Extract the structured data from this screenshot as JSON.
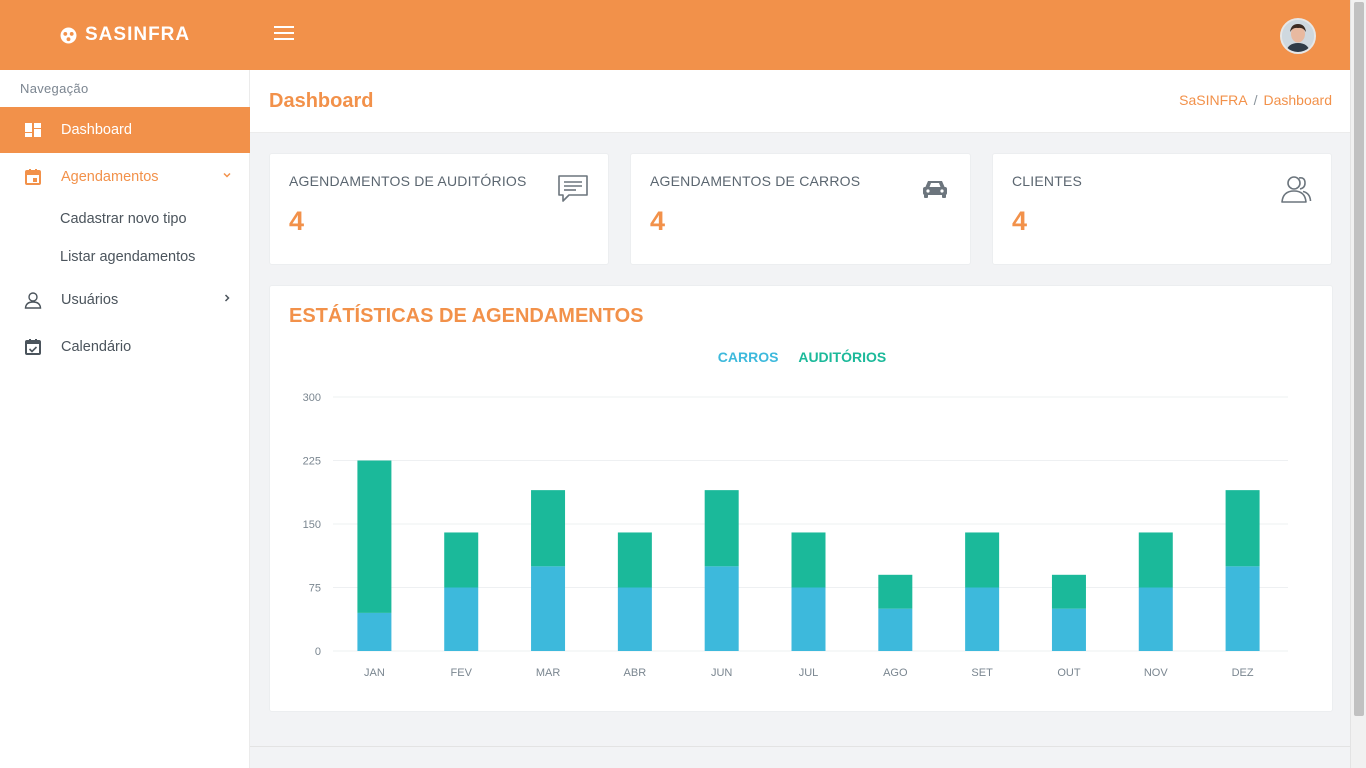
{
  "app": {
    "brand": "SASINFRA"
  },
  "sidebar": {
    "caption": "Navegação",
    "items": [
      {
        "label": "Dashboard",
        "icon": "dashboard-icon"
      },
      {
        "label": "Agendamentos",
        "icon": "calendar-icon"
      },
      {
        "label": "Usuários",
        "icon": "user-icon"
      },
      {
        "label": "Calendário",
        "icon": "calendar-check-icon"
      }
    ],
    "subitems": [
      {
        "label": "Cadastrar novo tipo"
      },
      {
        "label": "Listar agendamentos"
      }
    ]
  },
  "header": {
    "title": "Dashboard",
    "breadcrumb": [
      "SaSINFRA",
      "Dashboard"
    ]
  },
  "cards": [
    {
      "title": "AGENDAMENTOS DE AUDITÓRIOS",
      "value": "4",
      "icon": "comment-icon"
    },
    {
      "title": "AGENDAMENTOS DE CARROS",
      "value": "4",
      "icon": "car-icon"
    },
    {
      "title": "CLIENTES",
      "value": "4",
      "icon": "users-icon"
    }
  ],
  "panel": {
    "title": "ESTÁTÍSTICAS DE AGENDAMENTOS"
  },
  "colors": {
    "accent": "#f2914a",
    "carros": "#3db9dc",
    "auditorios": "#1bb99a"
  },
  "chart_data": {
    "type": "bar",
    "stacked": true,
    "categories": [
      "JAN",
      "FEV",
      "MAR",
      "ABR",
      "JUN",
      "JUL",
      "AGO",
      "SET",
      "OUT",
      "NOV",
      "DEZ"
    ],
    "series": [
      {
        "name": "CARROS",
        "values": [
          45,
          75,
          100,
          75,
          100,
          75,
          50,
          75,
          50,
          75,
          100
        ]
      },
      {
        "name": "AUDITÓRIOS",
        "values": [
          180,
          65,
          90,
          65,
          90,
          65,
          40,
          65,
          40,
          65,
          90
        ]
      }
    ],
    "yticks": [
      "300",
      "225",
      "150",
      "75",
      "0"
    ],
    "ylim": [
      0,
      300
    ],
    "grid": true,
    "legend": "top-center"
  }
}
